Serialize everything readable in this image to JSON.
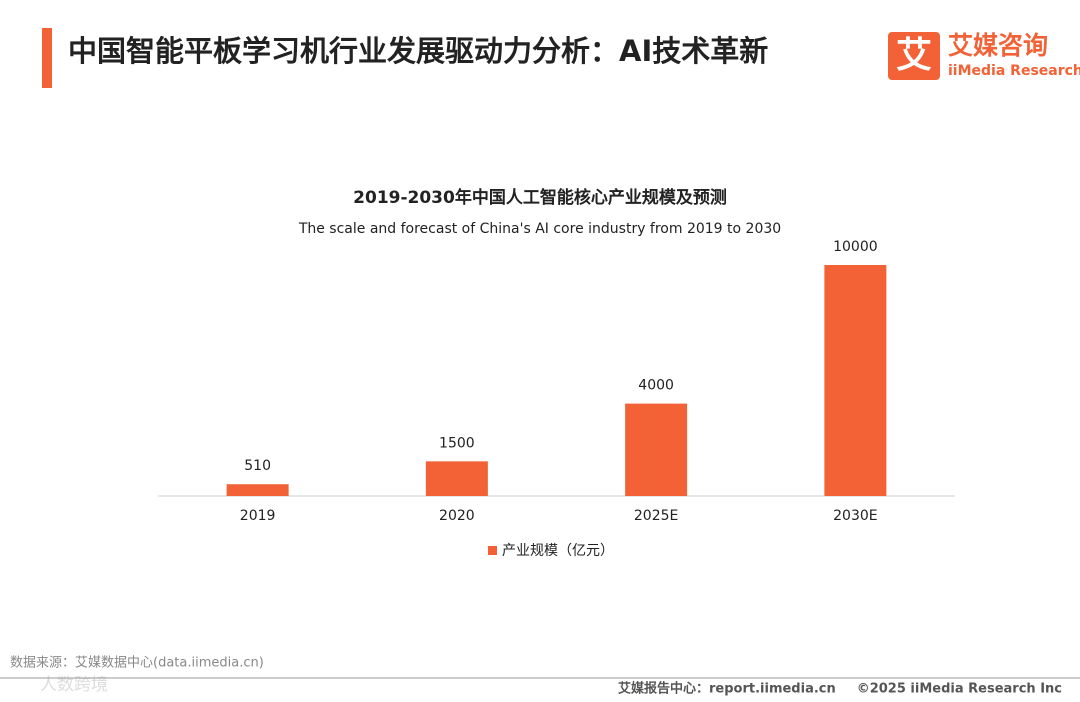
{
  "header": {
    "title": "中国智能平板学习机行业发展驱动力分析：AI技术革新",
    "logo_mark": "艾",
    "logo_cn": "艾媒咨询",
    "logo_en": "iiMedia Research"
  },
  "chart_data": {
    "type": "bar",
    "title": "2019-2030年中国人工智能核心产业规模及预测",
    "subtitle": "The scale and forecast of China's AI core industry from 2019 to 2030",
    "categories": [
      "2019",
      "2020",
      "2025E",
      "2030E"
    ],
    "series": [
      {
        "name": "产业规模（亿元）",
        "color": "#f26236",
        "values": [
          510,
          1500,
          4000,
          10000
        ]
      }
    ]
  },
  "footer": {
    "source": "数据来源：艾媒数据中心(data.iimedia.cn)",
    "watermark": "人数跨境",
    "report_center": "艾媒报告中心：report.iimedia.cn",
    "copyright": "©2025 iiMedia Research Inc"
  }
}
